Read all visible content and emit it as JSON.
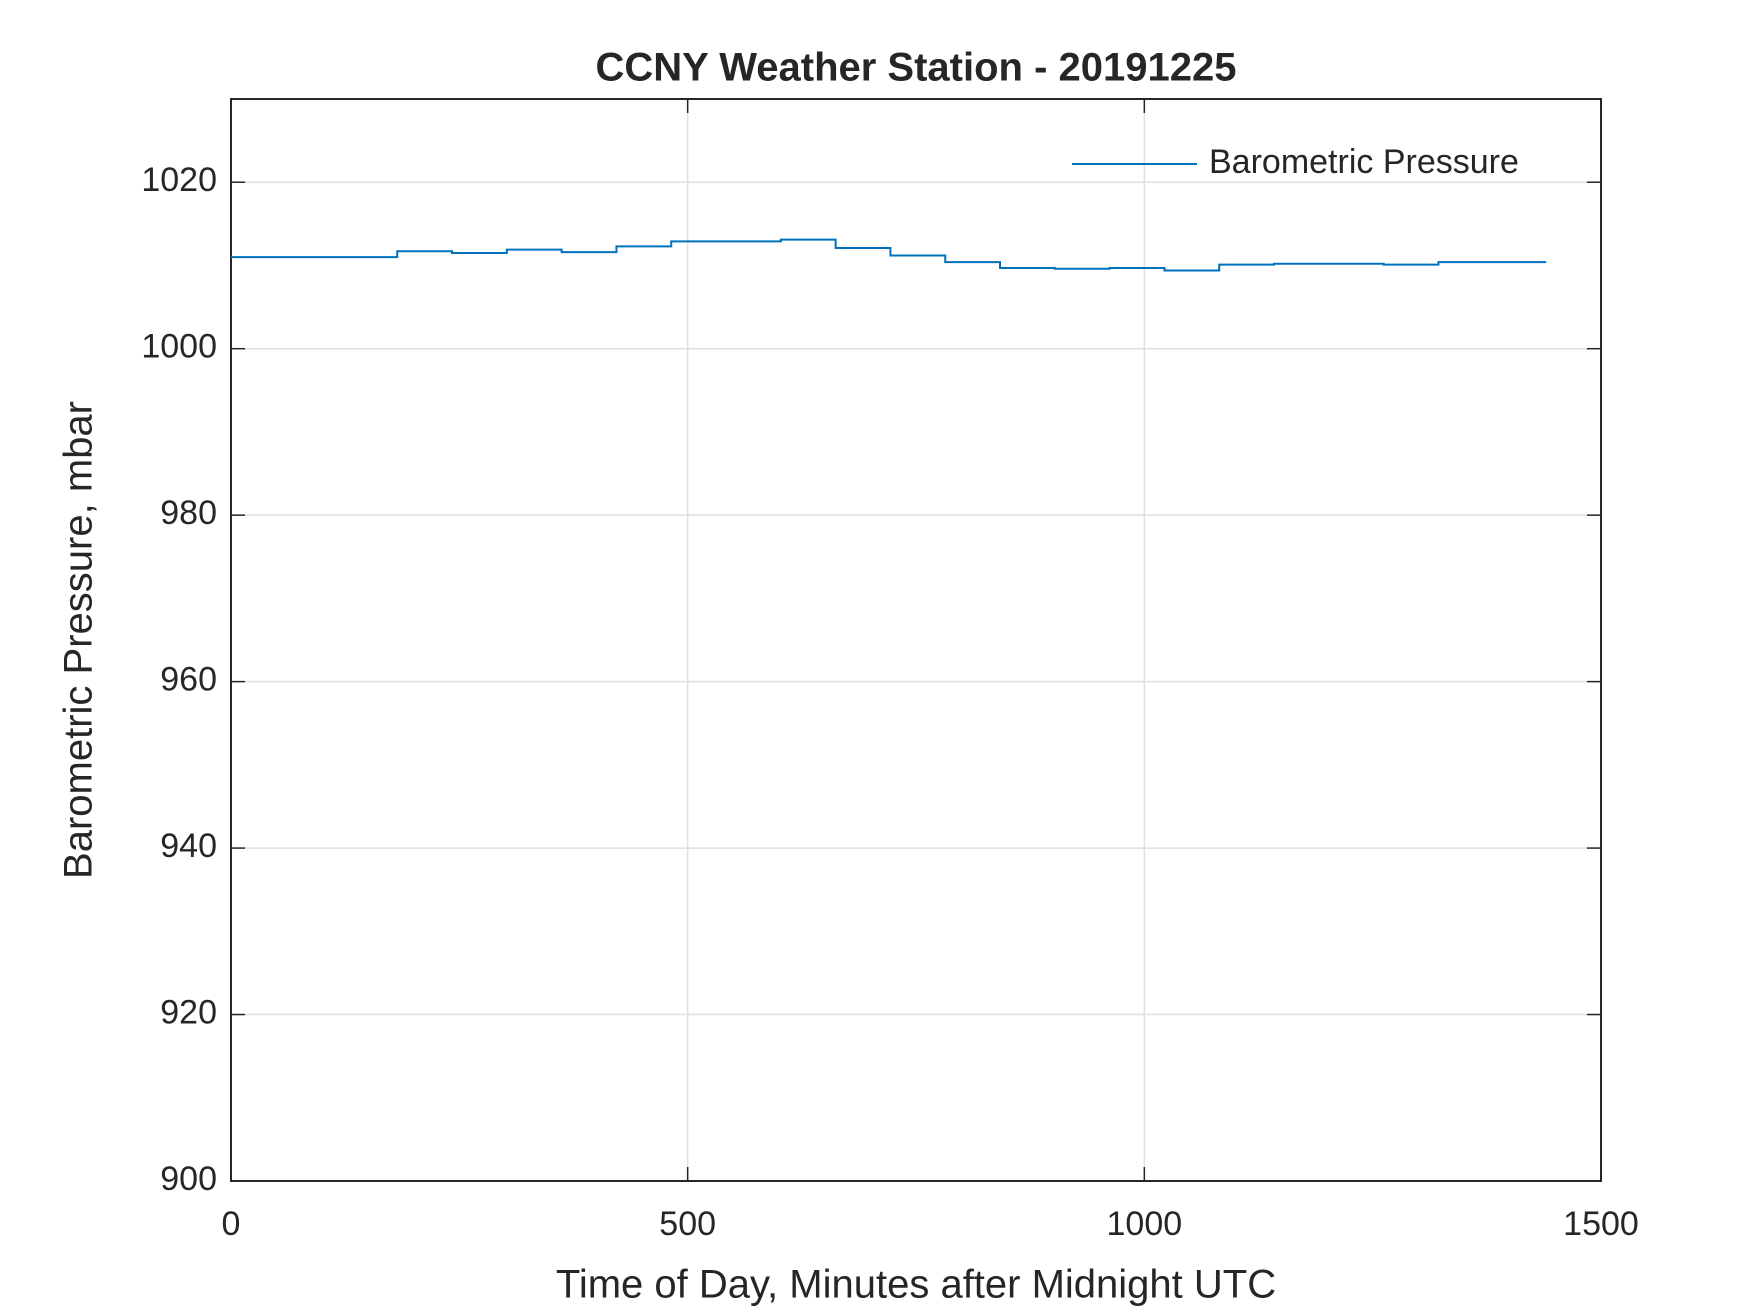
{
  "chart_data": {
    "type": "line",
    "title": "CCNY Weather Station - 20191225",
    "x_label": "Time of Day, Minutes after Midnight UTC",
    "y_label": "Barometric Pressure, mbar",
    "x": [
      0,
      182,
      242,
      302,
      362,
      422,
      482,
      542,
      602,
      662,
      722,
      782,
      842,
      902,
      962,
      1022,
      1082,
      1142,
      1202,
      1262,
      1322,
      1382,
      1440
    ],
    "series": [
      {
        "name": "Barometric Pressure",
        "color": "#0072bd",
        "values": [
          1011.0,
          1011.7,
          1011.5,
          1011.9,
          1011.6,
          1012.3,
          1012.9,
          1012.9,
          1013.1,
          1012.1,
          1011.2,
          1010.4,
          1009.7,
          1009.6,
          1009.7,
          1009.4,
          1010.1,
          1010.2,
          1010.2,
          1010.1,
          1010.4,
          1010.4,
          1010.4
        ]
      }
    ],
    "xlim": [
      0,
      1500
    ],
    "xticks": [
      0,
      500,
      1000,
      1500
    ],
    "ylim": [
      900,
      1030
    ],
    "yticks": [
      900,
      920,
      940,
      960,
      980,
      1000,
      1020
    ],
    "grid": true,
    "step": true,
    "legend": "top-right"
  }
}
